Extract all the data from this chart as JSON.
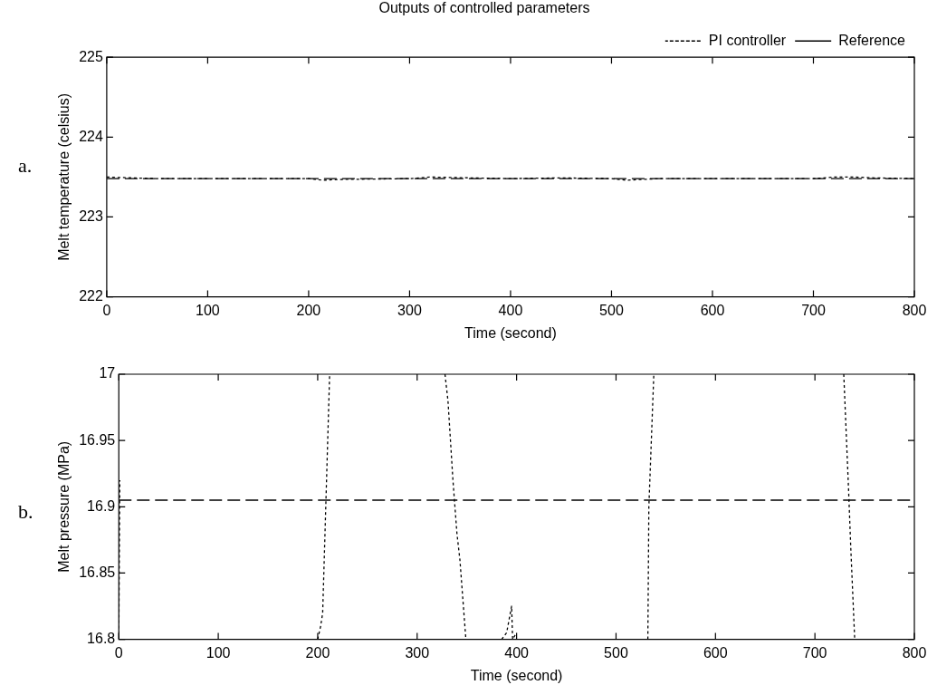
{
  "chart_data": [
    {
      "type": "line",
      "title": "Outputs of controlled parameters",
      "xlabel": "Time (second)",
      "ylabel": "Melt temperature (celsius)",
      "annotations": [
        "a."
      ],
      "series": [
        {
          "name": "PI controller",
          "color": "#000000",
          "line_style": "dotted",
          "x": [
            0,
            50,
            100,
            200,
            215,
            230,
            300,
            320,
            400,
            450,
            500,
            515,
            530,
            550,
            600,
            700,
            720,
            740,
            760,
            800
          ],
          "values": [
            223.5,
            223.48,
            223.48,
            223.48,
            223.46,
            223.47,
            223.48,
            223.5,
            223.48,
            223.49,
            223.48,
            223.46,
            223.47,
            223.48,
            223.48,
            223.48,
            223.5,
            223.5,
            223.49,
            223.48
          ]
        },
        {
          "name": "Reference",
          "color": "#000000",
          "line_style": "dashed",
          "x": [
            0,
            800
          ],
          "values": [
            223.48,
            223.48
          ]
        }
      ],
      "xlim": [
        0,
        800
      ],
      "xticks": [
        0,
        100,
        200,
        300,
        400,
        500,
        600,
        700,
        800
      ],
      "ylim": [
        222,
        225
      ],
      "yticks": [
        222,
        223,
        224,
        225
      ],
      "grid": false,
      "legend": "top right",
      "marker": "none"
    },
    {
      "type": "line",
      "xlabel": "Time (second)",
      "ylabel": "Melt pressure (MPa)",
      "annotations": [
        "b."
      ],
      "series": [
        {
          "color": "#000000",
          "line_style": "dotted",
          "x": [
            0,
            1,
            100,
            200,
            203,
            205,
            212,
            270,
            328,
            331,
            336,
            338,
            340,
            343,
            349,
            370,
            385,
            390,
            395,
            396,
            400,
            470,
            532,
            533,
            538,
            630,
            729,
            734,
            736,
            740
          ],
          "values": [
            16.8,
            16.92,
            null,
            16.8,
            16.81,
            16.82,
            17,
            null,
            17,
            16.98,
            16.92,
            16.9,
            16.88,
            16.86,
            16.8,
            null,
            16.8,
            16.805,
            16.825,
            16.8,
            16.805,
            null,
            16.8,
            16.9,
            17,
            null,
            17,
            16.91,
            16.87,
            16.8
          ]
        },
        {
          "color": "#000000",
          "line_style": "dashed",
          "x": [
            0,
            800
          ],
          "values": [
            16.905,
            16.905
          ]
        }
      ],
      "xlim": [
        0,
        800
      ],
      "xticks": [
        0,
        100,
        200,
        300,
        400,
        500,
        600,
        700,
        800
      ],
      "ylim": [
        16.8,
        17
      ],
      "yticks": [
        16.8,
        16.85,
        16.9,
        16.95,
        17
      ],
      "grid": false,
      "legend": false,
      "marker": "none"
    }
  ]
}
